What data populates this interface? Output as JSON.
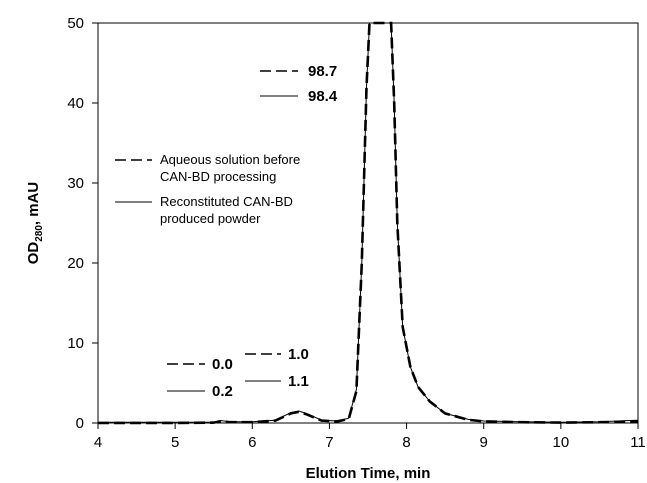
{
  "chart_data": {
    "type": "line",
    "xlabel": "Elution Time, min",
    "ylabel": "OD",
    "ylabel_sub": "280",
    "ylabel_unit": ", mAU",
    "xlim": [
      4,
      11
    ],
    "ylim": [
      0,
      50
    ],
    "xticks": [
      "4",
      "5",
      "6",
      "7",
      "8",
      "9",
      "10",
      "11"
    ],
    "yticks": [
      "0",
      "10",
      "20",
      "30",
      "40",
      "50"
    ],
    "grid": false,
    "legend_position": "upper-left",
    "legend": [
      {
        "style": "dashed",
        "lines": [
          "Aqueous solution before",
          "CAN-BD processing"
        ]
      },
      {
        "style": "solid",
        "lines": [
          "Reconstituted CAN-BD",
          "produced powder"
        ]
      }
    ],
    "annotations": [
      {
        "style": "dashed",
        "text": "98.7"
      },
      {
        "style": "solid",
        "text": "98.4"
      },
      {
        "style": "dashed",
        "text": "0.0"
      },
      {
        "style": "solid",
        "text": "0.2"
      },
      {
        "style": "dashed",
        "text": "1.0"
      },
      {
        "style": "solid",
        "text": "1.1"
      }
    ],
    "series": [
      {
        "style": "dashed",
        "x": [
          4.0,
          5.0,
          5.5,
          5.6,
          5.7,
          6.0,
          6.3,
          6.5,
          6.6,
          6.7,
          6.9,
          7.1,
          7.25,
          7.35,
          7.42,
          7.48,
          7.52,
          7.8,
          7.84,
          7.88,
          7.95,
          8.05,
          8.15,
          8.3,
          8.5,
          8.8,
          9.0,
          9.5,
          10.0,
          10.5,
          11.0
        ],
        "y": [
          0.0,
          0.0,
          0.05,
          0.25,
          0.1,
          0.1,
          0.3,
          1.2,
          1.4,
          1.1,
          0.3,
          0.2,
          0.5,
          4.0,
          20.0,
          42.0,
          50.0,
          50.0,
          40.0,
          25.0,
          12.0,
          7.0,
          4.5,
          2.7,
          1.2,
          0.4,
          0.2,
          0.1,
          0.05,
          0.1,
          0.2
        ]
      },
      {
        "style": "solid",
        "x": [
          4.0,
          5.0,
          5.5,
          5.6,
          5.7,
          6.0,
          6.3,
          6.5,
          6.6,
          6.7,
          6.9,
          7.1,
          7.25,
          7.35,
          7.42,
          7.48,
          7.52,
          7.8,
          7.84,
          7.88,
          7.95,
          8.05,
          8.15,
          8.3,
          8.5,
          8.8,
          9.0,
          9.5,
          10.0,
          10.5,
          11.0
        ],
        "y": [
          0.1,
          0.1,
          0.1,
          0.3,
          0.15,
          0.15,
          0.35,
          1.3,
          1.5,
          1.2,
          0.35,
          0.25,
          0.6,
          4.2,
          20.0,
          42.0,
          50.0,
          50.0,
          40.0,
          25.0,
          12.0,
          7.0,
          4.5,
          2.7,
          1.2,
          0.45,
          0.25,
          0.15,
          0.1,
          0.15,
          0.35
        ]
      }
    ]
  }
}
